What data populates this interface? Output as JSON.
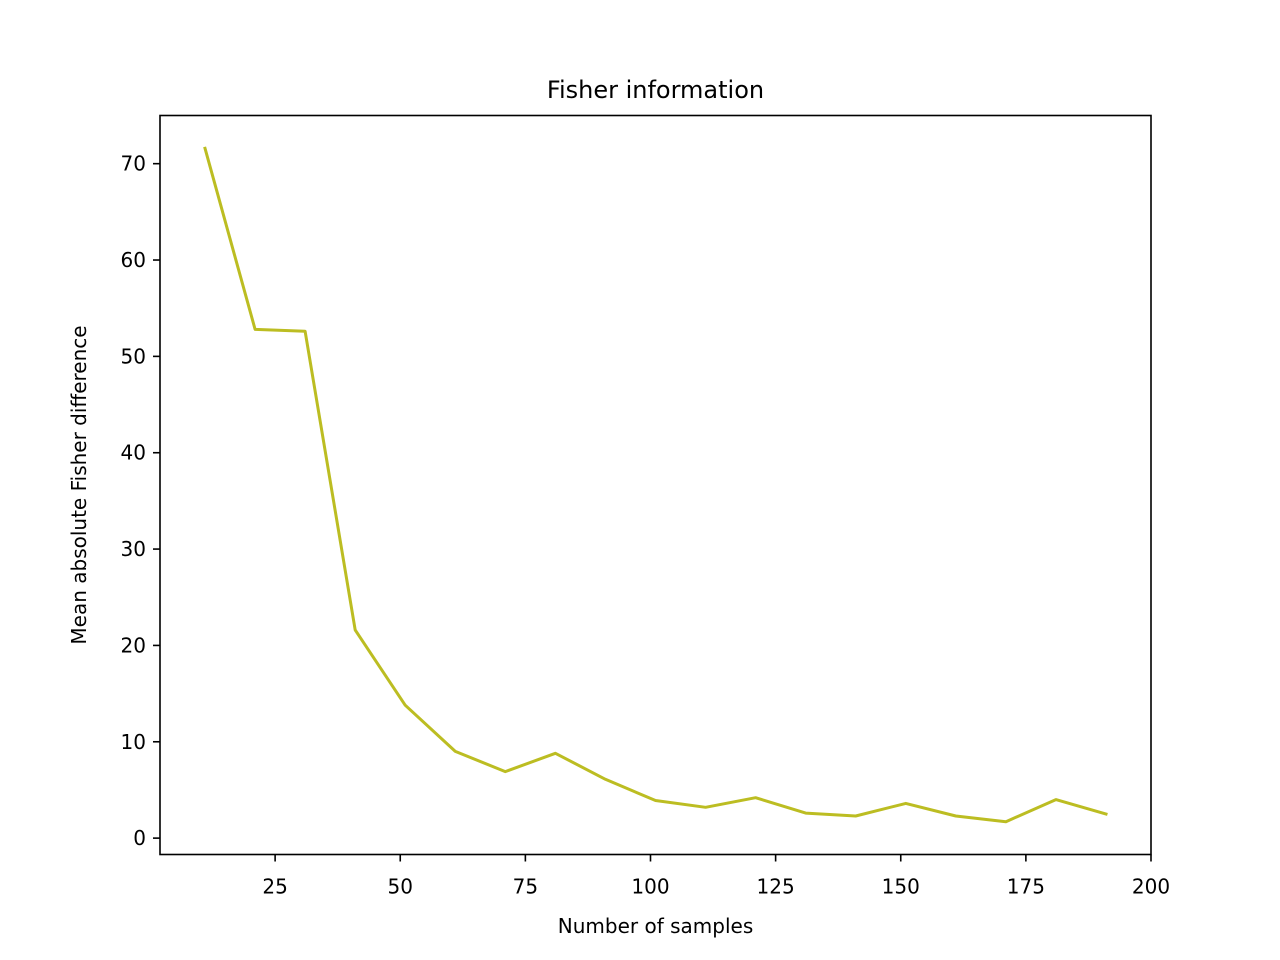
{
  "chart_data": {
    "type": "line",
    "title": "Fisher information",
    "xlabel": "Number of samples",
    "ylabel": "Mean absolute Fisher difference",
    "xlim": [
      2,
      200
    ],
    "ylim": [
      -1.7,
      75
    ],
    "xticks": [
      25,
      50,
      75,
      100,
      125,
      150,
      175,
      200
    ],
    "yticks": [
      0,
      10,
      20,
      30,
      40,
      50,
      60,
      70
    ],
    "grid": false,
    "legend": "none",
    "series": [
      {
        "color": "#bcbd22",
        "x": [
          11,
          21,
          31,
          41,
          51,
          61,
          71,
          81,
          91,
          101,
          111,
          121,
          131,
          141,
          151,
          161,
          171,
          181,
          191
        ],
        "y": [
          71.6,
          52.8,
          52.6,
          21.6,
          13.8,
          9.0,
          6.9,
          8.8,
          6.1,
          3.9,
          3.2,
          4.2,
          2.6,
          2.3,
          3.6,
          2.3,
          1.7,
          4.0,
          2.5
        ]
      }
    ]
  }
}
